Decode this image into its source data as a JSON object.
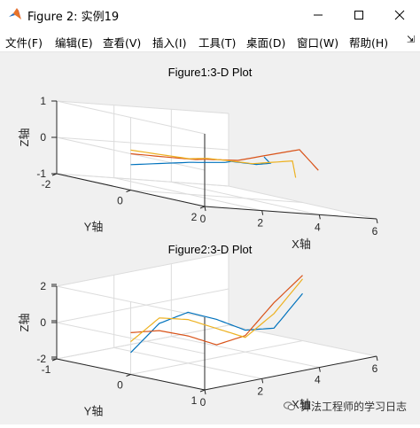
{
  "window": {
    "title": "Figure 2: 实例19",
    "controls": [
      "minimize",
      "maximize",
      "close"
    ]
  },
  "menubar": {
    "items": [
      "文件(F)",
      "编辑(E)",
      "查看(V)",
      "插入(I)",
      "工具(T)",
      "桌面(D)",
      "窗口(W)",
      "帮助(H)"
    ],
    "overflow_icon": "double-arrow-icon"
  },
  "colors": {
    "series1": "#0072BD",
    "series2": "#D95319",
    "series3": "#EDB120",
    "axis": "#262626",
    "grid": "#dcdcdc",
    "background": "#f0f0f0"
  },
  "chart_data": [
    {
      "type": "line",
      "title": "Figure1:3-D Plot",
      "xlabel": "X轴",
      "ylabel": "Y轴",
      "zlabel": "Z轴",
      "xticks": [
        "0",
        "2",
        "4",
        "6"
      ],
      "yticks": [
        "-2",
        "0",
        "2"
      ],
      "zticks": [
        "-1",
        "0",
        "1"
      ],
      "xlim": [
        0,
        6
      ],
      "ylim": [
        -2,
        2
      ],
      "zlim": [
        -1,
        1
      ],
      "grid": true,
      "series": [
        {
          "color": "#0072BD",
          "x": [
            0,
            1,
            2,
            3,
            4,
            5,
            5.3
          ],
          "y": [
            0,
            0.8,
            1.0,
            0.4,
            0.3,
            -0.1,
            -0.5
          ],
          "z": [
            -0.3,
            0,
            0.1,
            0.05,
            0,
            0,
            0.1
          ]
        },
        {
          "color": "#D95319",
          "x": [
            0,
            1,
            2,
            3,
            4,
            4.6,
            5
          ],
          "y": [
            0,
            0.5,
            0.2,
            -0.3,
            -0.2,
            1.0,
            1.2
          ],
          "z": [
            0,
            0.05,
            0,
            -0.05,
            0,
            0.6,
            0.1
          ]
        },
        {
          "color": "#EDB120",
          "x": [
            0,
            1,
            2,
            3,
            4,
            5,
            5.5
          ],
          "y": [
            0,
            0.8,
            0.5,
            0.3,
            0.2,
            0.5,
            0.2
          ],
          "z": [
            0.1,
            0.1,
            0.1,
            0.05,
            0,
            0.2,
            -0.3
          ]
        }
      ]
    },
    {
      "type": "line",
      "title": "Figure2:3-D Plot",
      "xlabel": "X轴",
      "ylabel": "Y轴",
      "zlabel": "Z轴",
      "xticks": [
        "0",
        "2",
        "4",
        "6"
      ],
      "yticks": [
        "-1",
        "0",
        "1"
      ],
      "zticks": [
        "-2",
        "0",
        "2"
      ],
      "xlim": [
        0,
        6
      ],
      "ylim": [
        -1,
        1
      ],
      "zlim": [
        -2,
        2
      ],
      "grid": true,
      "series": [
        {
          "color": "#0072BD",
          "x": [
            0,
            1,
            2,
            3,
            4,
            5,
            6
          ],
          "y": [
            0,
            0,
            0,
            0,
            0,
            0,
            0
          ],
          "z": [
            -0.8,
            0.5,
            0.8,
            0.1,
            -0.8,
            -1.0,
            0.6
          ]
        },
        {
          "color": "#D95319",
          "x": [
            0,
            1,
            2,
            3,
            4,
            5,
            6
          ],
          "y": [
            0,
            0,
            0,
            0,
            0,
            0,
            0
          ],
          "z": [
            0.3,
            0.1,
            -0.5,
            -1.3,
            -1.1,
            0.4,
            1.6
          ]
        },
        {
          "color": "#EDB120",
          "x": [
            0,
            1,
            2,
            3,
            4,
            5,
            6
          ],
          "y": [
            0,
            0,
            0,
            0,
            0,
            0,
            0
          ],
          "z": [
            -0.2,
            0.8,
            0.4,
            -0.4,
            -1.2,
            -0.2,
            1.4
          ]
        }
      ]
    }
  ],
  "watermark": {
    "text": "算法工程师的学习日志",
    "icon": "wechat-icon"
  }
}
